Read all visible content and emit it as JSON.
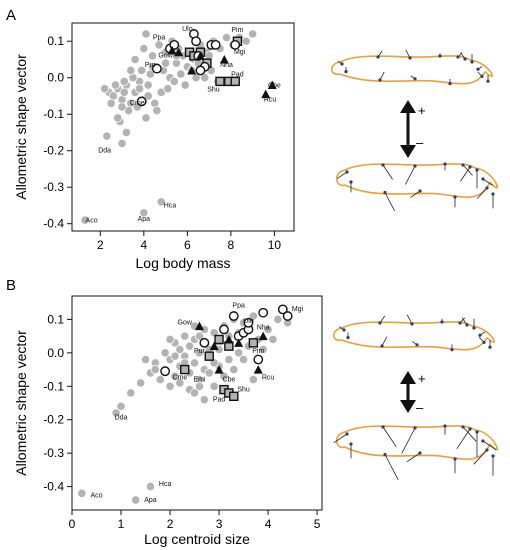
{
  "panels": [
    {
      "letter": "A",
      "chart_data": {
        "type": "scatter",
        "xlabel": "Log body mass",
        "ylabel": "Allometric shape vector",
        "xlim": [
          0.7,
          10.9
        ],
        "ylim": [
          -0.42,
          0.15
        ],
        "xticks": [
          "2",
          "4",
          "6",
          "8",
          "10"
        ],
        "xtick_values": [
          2,
          4,
          6,
          8,
          10
        ],
        "yticks": [
          "0.1",
          "0.0",
          "-0.1",
          "-0.2",
          "-0.3",
          "-0.4"
        ],
        "ytick_values": [
          0.1,
          0.0,
          -0.1,
          -0.2,
          -0.3,
          -0.4
        ],
        "grid": false,
        "background_points": [
          [
            2.4,
            -0.04
          ],
          [
            2.6,
            -0.05
          ],
          [
            2.8,
            -0.03
          ],
          [
            3.0,
            -0.06
          ],
          [
            3.2,
            -0.02
          ],
          [
            3.4,
            -0.07
          ],
          [
            3.6,
            -0.04
          ],
          [
            3.8,
            -0.01
          ],
          [
            4.0,
            -0.06
          ],
          [
            4.2,
            -0.05
          ],
          [
            2.7,
            -0.02
          ],
          [
            3.1,
            -0.01
          ],
          [
            3.5,
            0.0
          ],
          [
            3.9,
            0.02
          ],
          [
            4.3,
            0.01
          ],
          [
            4.6,
            0.03
          ],
          [
            4.9,
            0.02
          ],
          [
            5.2,
            0.0
          ],
          [
            5.5,
            0.04
          ],
          [
            5.8,
            0.06
          ],
          [
            3.3,
            -0.09
          ],
          [
            3.7,
            -0.08
          ],
          [
            4.1,
            -0.11
          ],
          [
            4.5,
            -0.07
          ],
          [
            4.8,
            -0.04
          ],
          [
            5.1,
            -0.03
          ],
          [
            5.4,
            -0.01
          ],
          [
            5.7,
            0.01
          ],
          [
            6.0,
            0.03
          ],
          [
            6.3,
            0.05
          ],
          [
            2.9,
            -0.12
          ],
          [
            3.2,
            -0.15
          ],
          [
            3.0,
            -0.18
          ],
          [
            3.6,
            0.05
          ],
          [
            4.0,
            0.08
          ],
          [
            4.4,
            0.06
          ],
          [
            4.7,
            0.09
          ],
          [
            5.0,
            0.07
          ],
          [
            5.3,
            0.1
          ],
          [
            5.6,
            0.08
          ],
          [
            6.6,
            0.09
          ],
          [
            6.9,
            0.07
          ],
          [
            7.2,
            0.1
          ],
          [
            7.5,
            0.08
          ],
          [
            7.8,
            0.11
          ],
          [
            8.1,
            0.09
          ],
          [
            8.4,
            0.11
          ],
          [
            8.7,
            0.1
          ],
          [
            9.0,
            0.12
          ],
          [
            6.2,
            0.02
          ],
          [
            6.5,
            0.04
          ],
          [
            6.8,
            0.0
          ],
          [
            7.1,
            0.02
          ],
          [
            7.4,
            -0.01
          ],
          [
            4.2,
            -0.02
          ],
          [
            3.4,
            0.02
          ],
          [
            2.2,
            -0.03
          ],
          [
            5.9,
            -0.02
          ],
          [
            4.6,
            -0.09
          ],
          [
            5.0,
            0.04
          ],
          [
            3.1,
            -0.04
          ],
          [
            2.5,
            -0.07
          ],
          [
            6.1,
            0.07
          ],
          [
            3.8,
            -0.03
          ],
          [
            4.4,
            0.03
          ],
          [
            5.5,
            0.06
          ],
          [
            6.4,
            0.0
          ],
          [
            3.0,
            -0.08
          ],
          [
            2.8,
            -0.11
          ],
          [
            7.0,
            0.06
          ],
          [
            1.3,
            -0.39
          ],
          [
            4.0,
            -0.37
          ],
          [
            4.8,
            -0.34
          ],
          [
            2.3,
            -0.16
          ],
          [
            4.1,
            0.12
          ]
        ],
        "circles": [
          [
            4.6,
            0.025
          ],
          [
            3.9,
            -0.065
          ],
          [
            6.3,
            0.12
          ],
          [
            6.4,
            0.1
          ],
          [
            6.5,
            0.06
          ],
          [
            6.8,
            0.03
          ],
          [
            7.1,
            0.09
          ],
          [
            7.3,
            0.09
          ],
          [
            8.2,
            0.09
          ],
          [
            5.2,
            0.08
          ],
          [
            5.4,
            0.09
          ],
          [
            6.6,
            0.02
          ]
        ],
        "squares": [
          [
            6.1,
            0.07
          ],
          [
            6.3,
            0.06
          ],
          [
            6.9,
            0.04
          ],
          [
            7.5,
            -0.01
          ],
          [
            7.9,
            -0.01
          ],
          [
            8.2,
            -0.01
          ],
          [
            8.3,
            0.1
          ],
          [
            6.6,
            0.07
          ]
        ],
        "triangles": [
          [
            5.3,
            0.075
          ],
          [
            6.2,
            0.02
          ],
          [
            6.6,
            0.06
          ],
          [
            7.7,
            0.05
          ],
          [
            9.9,
            -0.02
          ],
          [
            9.6,
            -0.045
          ],
          [
            5.6,
            0.07
          ]
        ],
        "labels": [
          {
            "text": "Aco",
            "x": 1.6,
            "y": -0.397
          },
          {
            "text": "Apa",
            "x": 4.0,
            "y": -0.393
          },
          {
            "text": "Hca",
            "x": 5.2,
            "y": -0.355
          },
          {
            "text": "Dda",
            "x": 2.2,
            "y": -0.205
          },
          {
            "text": "Cme",
            "x": 3.7,
            "y": -0.075
          },
          {
            "text": "Pur",
            "x": 4.3,
            "y": 0.03
          },
          {
            "text": "Ppa",
            "x": 4.7,
            "y": 0.105
          },
          {
            "text": "Gow",
            "x": 5.0,
            "y": 0.055
          },
          {
            "text": "Ulo",
            "x": 6.0,
            "y": 0.128
          },
          {
            "text": "Pim",
            "x": 8.3,
            "y": 0.125
          },
          {
            "text": "Mgi",
            "x": 8.4,
            "y": 0.065
          },
          {
            "text": "Nha",
            "x": 7.8,
            "y": 0.03
          },
          {
            "text": "Pad",
            "x": 8.3,
            "y": 0.004
          },
          {
            "text": "Shu",
            "x": 7.2,
            "y": -0.038
          },
          {
            "text": "Cbe",
            "x": 10.0,
            "y": -0.027
          },
          {
            "text": "Rcu",
            "x": 9.8,
            "y": -0.065
          }
        ]
      }
    },
    {
      "letter": "B",
      "chart_data": {
        "type": "scatter",
        "xlabel": "Log centroid size",
        "ylabel": "Allometric shape vector",
        "xlim": [
          0.0,
          5.1
        ],
        "ylim": [
          -0.47,
          0.17
        ],
        "xticks": [
          "0",
          "1",
          "2",
          "3",
          "4",
          "5"
        ],
        "xtick_values": [
          0,
          1,
          2,
          3,
          4,
          5
        ],
        "yticks": [
          "0.1",
          "0.0",
          "-0.1",
          "-0.2",
          "-0.3",
          "-0.4"
        ],
        "ytick_values": [
          0.1,
          0.0,
          -0.1,
          -0.2,
          -0.3,
          -0.4
        ],
        "grid": false,
        "background_points": [
          [
            1.7,
            -0.03
          ],
          [
            1.9,
            -0.05
          ],
          [
            2.0,
            -0.02
          ],
          [
            2.1,
            -0.07
          ],
          [
            2.2,
            -0.04
          ],
          [
            2.3,
            -0.01
          ],
          [
            2.4,
            -0.06
          ],
          [
            2.5,
            -0.03
          ],
          [
            2.6,
            0.0
          ],
          [
            2.7,
            -0.05
          ],
          [
            1.8,
            -0.08
          ],
          [
            2.0,
            -0.1
          ],
          [
            2.2,
            -0.09
          ],
          [
            2.4,
            -0.11
          ],
          [
            2.6,
            -0.08
          ],
          [
            2.8,
            -0.06
          ],
          [
            3.0,
            -0.04
          ],
          [
            3.2,
            -0.02
          ],
          [
            3.4,
            0.0
          ],
          [
            3.6,
            0.02
          ],
          [
            2.1,
            0.03
          ],
          [
            2.3,
            0.05
          ],
          [
            2.5,
            0.04
          ],
          [
            2.7,
            0.07
          ],
          [
            2.9,
            0.06
          ],
          [
            3.1,
            0.08
          ],
          [
            3.3,
            0.1
          ],
          [
            3.5,
            0.09
          ],
          [
            3.7,
            0.11
          ],
          [
            3.9,
            0.12
          ],
          [
            1.5,
            -0.02
          ],
          [
            1.6,
            -0.06
          ],
          [
            1.4,
            -0.09
          ],
          [
            1.2,
            -0.12
          ],
          [
            1.0,
            -0.16
          ],
          [
            0.9,
            -0.18
          ],
          [
            2.8,
            0.01
          ],
          [
            3.0,
            0.03
          ],
          [
            3.2,
            0.05
          ],
          [
            3.4,
            0.06
          ],
          [
            2.9,
            -0.03
          ],
          [
            3.1,
            -0.07
          ],
          [
            3.3,
            -0.05
          ],
          [
            3.5,
            -0.02
          ],
          [
            3.7,
            -0.08
          ],
          [
            2.2,
            0.01
          ],
          [
            2.4,
            0.02
          ],
          [
            2.6,
            0.05
          ],
          [
            1.9,
            0.0
          ],
          [
            2.0,
            0.04
          ],
          [
            3.8,
            0.04
          ],
          [
            4.0,
            0.07
          ],
          [
            4.2,
            0.1
          ],
          [
            4.4,
            0.09
          ],
          [
            3.6,
            0.07
          ],
          [
            2.5,
            -0.12
          ],
          [
            2.7,
            -0.14
          ],
          [
            2.9,
            -0.1
          ],
          [
            1.7,
            -0.05
          ],
          [
            2.3,
            -0.03
          ],
          [
            0.2,
            -0.42
          ],
          [
            1.3,
            -0.44
          ],
          [
            1.6,
            -0.4
          ],
          [
            2.8,
            -0.01
          ],
          [
            3.0,
            0.01
          ],
          [
            2.1,
            -0.01
          ],
          [
            2.5,
            0.08
          ],
          [
            3.9,
            0.01
          ],
          [
            4.1,
            0.04
          ],
          [
            2.6,
            -0.1
          ]
        ],
        "circles": [
          [
            1.9,
            -0.055
          ],
          [
            3.3,
            0.11
          ],
          [
            3.4,
            0.05
          ],
          [
            3.5,
            0.06
          ],
          [
            3.6,
            0.07
          ],
          [
            3.6,
            0.09
          ],
          [
            3.9,
            0.12
          ],
          [
            4.3,
            0.13
          ],
          [
            4.4,
            0.11
          ],
          [
            3.8,
            -0.02
          ],
          [
            3.1,
            0.07
          ],
          [
            2.7,
            0.03
          ]
        ],
        "squares": [
          [
            2.3,
            -0.05
          ],
          [
            2.8,
            -0.01
          ],
          [
            3.1,
            -0.11
          ],
          [
            3.2,
            -0.12
          ],
          [
            3.3,
            -0.13
          ],
          [
            3.7,
            0.03
          ],
          [
            3.2,
            0.02
          ],
          [
            3.0,
            0.04
          ]
        ],
        "triangles": [
          [
            2.6,
            0.08
          ],
          [
            3.0,
            -0.05
          ],
          [
            3.2,
            0.04
          ],
          [
            3.9,
            0.05
          ],
          [
            3.8,
            -0.05
          ],
          [
            2.9,
            0.02
          ],
          [
            3.4,
            0.03
          ]
        ],
        "labels": [
          {
            "text": "Aco",
            "x": 0.5,
            "y": -0.432
          },
          {
            "text": "Apa",
            "x": 1.6,
            "y": -0.446
          },
          {
            "text": "Hca",
            "x": 1.9,
            "y": -0.398
          },
          {
            "text": "Dda",
            "x": 1.0,
            "y": -0.2
          },
          {
            "text": "Cme",
            "x": 2.2,
            "y": -0.08
          },
          {
            "text": "Pur",
            "x": 2.6,
            "y": 0.0
          },
          {
            "text": "Gow",
            "x": 2.3,
            "y": 0.085
          },
          {
            "text": "Ppa",
            "x": 3.4,
            "y": 0.135
          },
          {
            "text": "Ulo",
            "x": 3.6,
            "y": 0.09
          },
          {
            "text": "Mgi",
            "x": 4.6,
            "y": 0.125
          },
          {
            "text": "Nha",
            "x": 3.9,
            "y": 0.07
          },
          {
            "text": "Pim",
            "x": 3.8,
            "y": 0.0
          },
          {
            "text": "Emi",
            "x": 2.6,
            "y": -0.085
          },
          {
            "text": "Cbe",
            "x": 3.2,
            "y": -0.085
          },
          {
            "text": "Rcu",
            "x": 4.0,
            "y": -0.08
          },
          {
            "text": "Shu",
            "x": 3.5,
            "y": -0.115
          },
          {
            "text": "Pad",
            "x": 3.0,
            "y": -0.145
          }
        ]
      }
    }
  ],
  "shape_glyphs": {
    "plus": "+",
    "minus": "–"
  },
  "colors": {
    "point_gray": "#b3b3b3",
    "outline": "#ffffff",
    "marker": "#111111",
    "curve": "#e8a13a",
    "landmark": "#2c3e6a"
  }
}
